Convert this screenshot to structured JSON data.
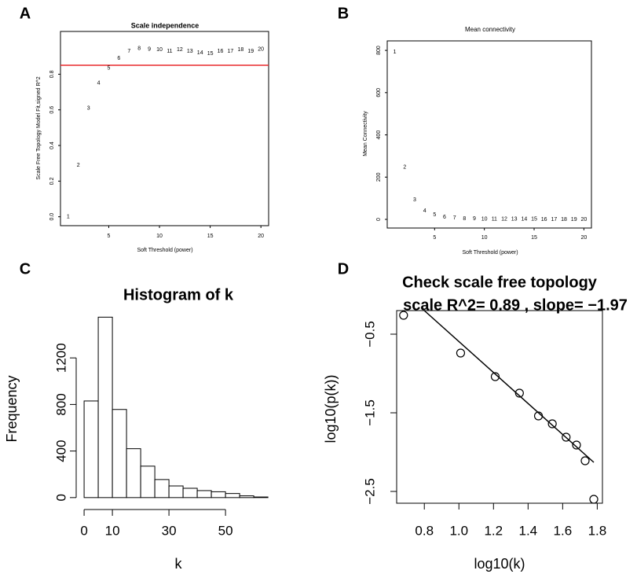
{
  "chart_data": [
    {
      "type": "scatter",
      "panel_label": "A",
      "title": "Scale independence",
      "x_label": "Soft Threshold (power)",
      "y_label": "Scale Free Topology Model Fit,signed R^2",
      "marker": "label",
      "color": "#e8282b",
      "box": true,
      "x": [
        1,
        2,
        3,
        4,
        5,
        6,
        7,
        8,
        9,
        10,
        11,
        12,
        13,
        14,
        15,
        16,
        17,
        18,
        19,
        20
      ],
      "values": [
        0.0,
        0.29,
        0.61,
        0.75,
        0.835,
        0.89,
        0.93,
        0.945,
        0.94,
        0.937,
        0.93,
        0.937,
        0.93,
        0.92,
        0.915,
        0.93,
        0.93,
        0.937,
        0.93,
        0.94
      ],
      "hline": 0.85,
      "hline_color": "#e8282b",
      "xlim": [
        0.24,
        20.76
      ],
      "ylim": [
        -0.05,
        1.04
      ],
      "xticks": [
        5,
        10,
        15,
        20
      ],
      "yticks": [
        {
          "value": 0,
          "label": "0.0"
        },
        0.2,
        0.4,
        0.6,
        0.8
      ]
    },
    {
      "type": "scatter",
      "panel_label": "B",
      "title": "Mean connectivity",
      "x_label": "Soft Threshold (power)",
      "y_label": "Mean Connectivity",
      "marker": "label",
      "color": "#e8282b",
      "box": true,
      "x": [
        1,
        2,
        3,
        4,
        5,
        6,
        7,
        8,
        9,
        10,
        11,
        12,
        13,
        14,
        15,
        16,
        17,
        18,
        19,
        20
      ],
      "values": [
        792,
        246,
        93,
        41,
        22,
        11,
        6,
        4,
        3,
        2,
        2,
        1,
        1,
        1,
        1,
        0,
        0,
        0,
        0,
        0
      ],
      "xlim": [
        0.24,
        20.76
      ],
      "ylim": [
        -41,
        845
      ],
      "xticks": [
        5,
        10,
        15,
        20
      ],
      "yticks": [
        0,
        200,
        400,
        600,
        800
      ]
    },
    {
      "type": "histogram",
      "panel_label": "C",
      "title": "Histogram of k",
      "x_label": "k",
      "y_label": "Frequency",
      "color": "#ffffff",
      "box": false,
      "bins": [
        0,
        5,
        10,
        15,
        20,
        25,
        30,
        35,
        40,
        45,
        50,
        55,
        60,
        65
      ],
      "values": [
        830,
        1550,
        757,
        420,
        270,
        155,
        100,
        80,
        60,
        50,
        35,
        15,
        5
      ],
      "xlim": [
        -2.8,
        68.3
      ],
      "ylim": [
        -62,
        1620
      ],
      "xticks": [
        0,
        10,
        30,
        50
      ],
      "yticks": [
        0,
        400,
        800,
        1200
      ]
    },
    {
      "type": "scatter",
      "panel_label": "D",
      "title": "Check scale free topology",
      "subtitle": "scale R^2= 0.89 , slope= −1.97",
      "x_label": "log10(k)",
      "y_label": "log10(p(k))",
      "marker": "circle",
      "color": "#000000",
      "box": true,
      "x": [
        0.68,
        1.01,
        1.21,
        1.35,
        1.46,
        1.54,
        1.62,
        1.68,
        1.73,
        1.78
      ],
      "values": [
        -0.26,
        -0.74,
        -1.04,
        -1.25,
        -1.54,
        -1.64,
        -1.81,
        -1.91,
        -2.11,
        -2.6
      ],
      "fit": {
        "x": [
          0.8,
          1.78
        ],
        "y": [
          -0.2,
          -2.13
        ]
      },
      "fit_color": "#000000",
      "xlim": [
        0.64,
        1.83
      ],
      "ylim": [
        -2.65,
        -0.2
      ],
      "xticks": [
        0.8,
        {
          "value": 1,
          "label": "1.0"
        },
        1.2,
        1.4,
        1.6,
        1.8
      ],
      "yticks": [
        {
          "value": -0.5,
          "label": "−0.5"
        },
        {
          "value": -1.5,
          "label": "−1.5"
        },
        {
          "value": -2.5,
          "label": "−2.5"
        }
      ]
    }
  ]
}
